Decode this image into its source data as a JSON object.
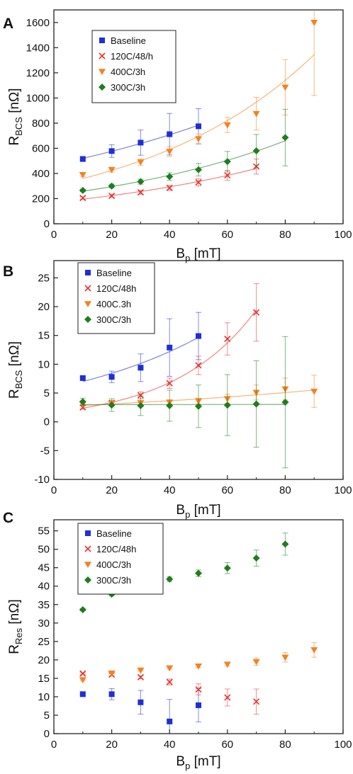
{
  "chart_data": [
    {
      "type": "scatter",
      "panel_label": "A",
      "xlabel": "B",
      "xlabel_sub": "p",
      "xlabel_unit": " [mT]",
      "ylabel": "R",
      "ylabel_sub": "BCS",
      "ylabel_unit": " [nΩ]",
      "xlim": [
        0,
        100
      ],
      "ylim": [
        0,
        1700
      ],
      "xticks": [
        0,
        20,
        40,
        60,
        80,
        100
      ],
      "yticks": [
        0,
        200,
        400,
        600,
        800,
        1000,
        1200,
        1400,
        1600
      ],
      "grid": false,
      "legend_position": "top-left",
      "series": [
        {
          "name": "Baseline",
          "marker": "square",
          "color": "#1f2fd6",
          "fit": true,
          "x": [
            10,
            20,
            30,
            40,
            50
          ],
          "y": [
            515,
            578,
            645,
            712,
            775
          ],
          "err": [
            20,
            50,
            100,
            165,
            140
          ]
        },
        {
          "name": "120C/48/h",
          "marker": "x",
          "color": "#e8322e",
          "fit": true,
          "x": [
            10,
            20,
            30,
            40,
            50,
            60,
            70
          ],
          "y": [
            205,
            222,
            250,
            285,
            330,
            385,
            455
          ],
          "err": [
            10,
            12,
            15,
            20,
            30,
            40,
            60
          ]
        },
        {
          "name": "400C/3h",
          "marker": "triangle-down",
          "color": "#f5821f",
          "fit": true,
          "x": [
            10,
            20,
            30,
            40,
            50,
            60,
            70,
            80,
            90
          ],
          "y": [
            390,
            430,
            490,
            575,
            675,
            785,
            875,
            1085,
            1600
          ],
          "err": [
            15,
            20,
            25,
            40,
            40,
            60,
            130,
            220,
            580
          ]
        },
        {
          "name": "300C/3h",
          "marker": "diamond",
          "color": "#1e7d1e",
          "fit": true,
          "x": [
            10,
            20,
            30,
            40,
            50,
            60,
            70,
            80
          ],
          "y": [
            265,
            300,
            335,
            375,
            430,
            495,
            580,
            685
          ],
          "err": [
            10,
            15,
            20,
            30,
            50,
            80,
            130,
            225
          ]
        }
      ]
    },
    {
      "type": "scatter",
      "panel_label": "B",
      "xlabel": "B",
      "xlabel_sub": "p",
      "xlabel_unit": " [mT]",
      "ylabel": "R",
      "ylabel_sub": "BCS",
      "ylabel_unit": " [nΩ]",
      "xlim": [
        0,
        100
      ],
      "ylim": [
        -10,
        28
      ],
      "xticks": [
        0,
        20,
        40,
        60,
        80,
        100
      ],
      "yticks": [
        -10,
        -5,
        0,
        5,
        10,
        15,
        20,
        25
      ],
      "grid": false,
      "legend_position": "top-left",
      "series": [
        {
          "name": "Baseline",
          "marker": "square",
          "color": "#1f2fd6",
          "fit": true,
          "x": [
            10,
            20,
            30,
            40,
            50
          ],
          "y": [
            7.6,
            7.8,
            9.4,
            12.9,
            14.9
          ],
          "err": [
            0.3,
            1.0,
            2.4,
            5.0,
            4.1
          ]
        },
        {
          "name": "120C/48h",
          "marker": "x",
          "color": "#e8322e",
          "fit": true,
          "x": [
            10,
            20,
            30,
            40,
            50,
            60,
            70
          ],
          "y": [
            2.5,
            3.3,
            4.6,
            6.7,
            9.8,
            14.4,
            19.0
          ],
          "err": [
            0.3,
            0.4,
            0.6,
            0.9,
            1.6,
            2.8,
            5.0
          ]
        },
        {
          "name": "400C.3h",
          "marker": "triangle-down",
          "color": "#f5821f",
          "fit": true,
          "x": [
            10,
            20,
            30,
            40,
            50,
            60,
            70,
            80,
            90
          ],
          "y": [
            3.1,
            3.2,
            3.3,
            3.4,
            3.6,
            4.0,
            5.1,
            5.7,
            5.3
          ],
          "err": [
            0.2,
            0.2,
            0.3,
            0.3,
            0.5,
            0.8,
            1.3,
            1.9,
            2.8
          ]
        },
        {
          "name": "300C/3h",
          "marker": "diamond",
          "color": "#1e7d1e",
          "fit": true,
          "x": [
            10,
            20,
            30,
            40,
            50,
            60,
            70,
            80
          ],
          "y": [
            3.5,
            2.9,
            2.8,
            2.8,
            2.7,
            2.9,
            3.1,
            3.4
          ],
          "err": [
            0.6,
            1.1,
            1.7,
            2.7,
            3.7,
            5.3,
            7.5,
            11.4
          ]
        }
      ]
    },
    {
      "type": "scatter",
      "panel_label": "C",
      "xlabel": "B",
      "xlabel_sub": "p",
      "xlabel_unit": " [mT]",
      "ylabel": "R",
      "ylabel_sub": "Res",
      "ylabel_unit": " [nΩ]",
      "xlim": [
        0,
        100
      ],
      "ylim": [
        0,
        58
      ],
      "xticks": [
        0,
        20,
        40,
        60,
        80,
        100
      ],
      "yticks": [
        0,
        5,
        10,
        15,
        20,
        25,
        30,
        35,
        40,
        45,
        50,
        55
      ],
      "grid": false,
      "legend_position": "top-left",
      "series": [
        {
          "name": "Baseline",
          "marker": "square",
          "color": "#1f2fd6",
          "fit": false,
          "x": [
            10,
            20,
            30,
            40,
            50
          ],
          "y": [
            10.7,
            10.7,
            8.5,
            3.3,
            7.7
          ],
          "err": [
            0.3,
            1.5,
            3.2,
            6.0,
            4.5
          ]
        },
        {
          "name": "120C/48h",
          "marker": "x",
          "color": "#e8322e",
          "fit": false,
          "x": [
            10,
            20,
            30,
            40,
            50,
            60,
            70
          ],
          "y": [
            16.3,
            16.0,
            15.3,
            14.0,
            12.0,
            9.8,
            8.7
          ],
          "err": [
            0.2,
            0.3,
            0.4,
            0.8,
            1.5,
            2.3,
            3.4
          ]
        },
        {
          "name": "400C/3h",
          "marker": "triangle-down",
          "color": "#f5821f",
          "fit": false,
          "x": [
            10,
            20,
            30,
            40,
            50,
            60,
            70,
            80,
            90
          ],
          "y": [
            14.6,
            16.4,
            17.2,
            17.8,
            18.3,
            18.8,
            19.5,
            20.7,
            22.7
          ],
          "err": [
            0.2,
            0.2,
            0.2,
            0.3,
            0.4,
            0.5,
            1.0,
            1.3,
            2.0
          ]
        },
        {
          "name": "300C/3h",
          "marker": "diamond",
          "color": "#1e7d1e",
          "fit": false,
          "x": [
            10,
            20,
            30,
            40,
            50,
            60,
            70,
            80
          ],
          "y": [
            33.6,
            37.8,
            40.3,
            41.9,
            43.5,
            44.9,
            47.6,
            51.4
          ],
          "err": [
            0.3,
            0.4,
            0.5,
            0.6,
            0.9,
            1.5,
            2.2,
            3.0
          ]
        }
      ]
    }
  ]
}
